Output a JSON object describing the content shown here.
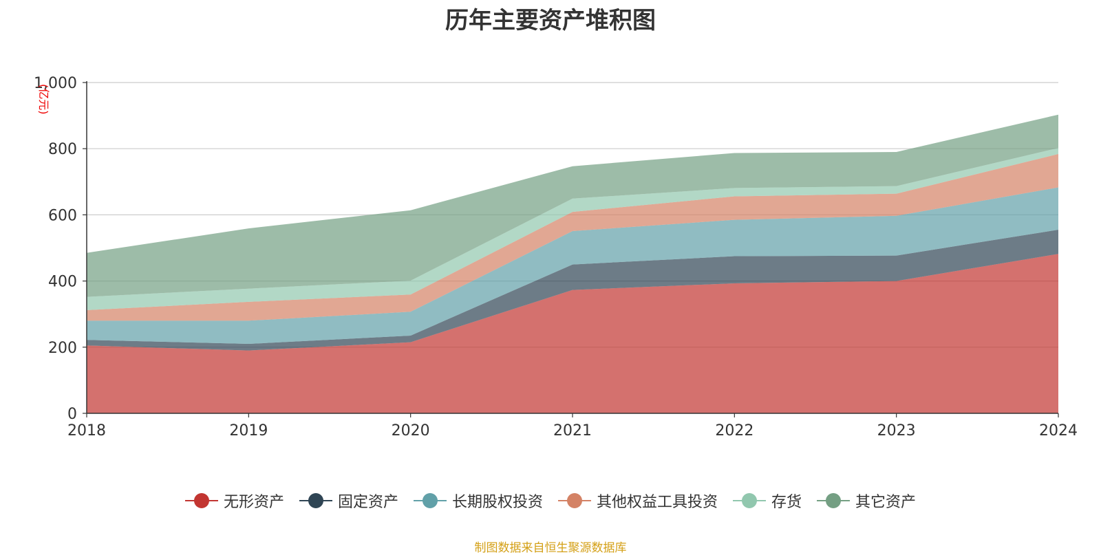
{
  "chart_data": {
    "type": "area",
    "stacked": true,
    "title": "历年主要资产堆积图",
    "unit": "(亿元)",
    "categories": [
      "2018",
      "2019",
      "2020",
      "2021",
      "2022",
      "2023",
      "2024"
    ],
    "ylim": [
      0,
      1000
    ],
    "yticks": [
      0,
      200,
      400,
      600,
      800,
      1000
    ],
    "ytick_labels": [
      "0",
      "200",
      "400",
      "600",
      "800",
      "1,000"
    ],
    "grid": true,
    "legend_position": "bottom",
    "series": [
      {
        "name": "无形资产",
        "color": "#c23531",
        "values": [
          205,
          190,
          215,
          373,
          393,
          400,
          482
        ]
      },
      {
        "name": "固定资产",
        "color": "#2f4554",
        "values": [
          17,
          20,
          20,
          77,
          82,
          77,
          73
        ]
      },
      {
        "name": "长期股权投资",
        "color": "#61a0a8",
        "values": [
          58,
          70,
          72,
          101,
          110,
          120,
          128
        ]
      },
      {
        "name": "其他权益工具投资",
        "color": "#d48265",
        "values": [
          32,
          57,
          52,
          58,
          71,
          67,
          101
        ]
      },
      {
        "name": "存货",
        "color": "#91c7ae",
        "values": [
          40,
          40,
          42,
          40,
          25,
          23,
          18
        ]
      },
      {
        "name": "其它资产",
        "color": "#749f83",
        "values": [
          133,
          182,
          213,
          98,
          106,
          103,
          101
        ]
      }
    ],
    "source": "制图数据来自恒生聚源数据库"
  }
}
